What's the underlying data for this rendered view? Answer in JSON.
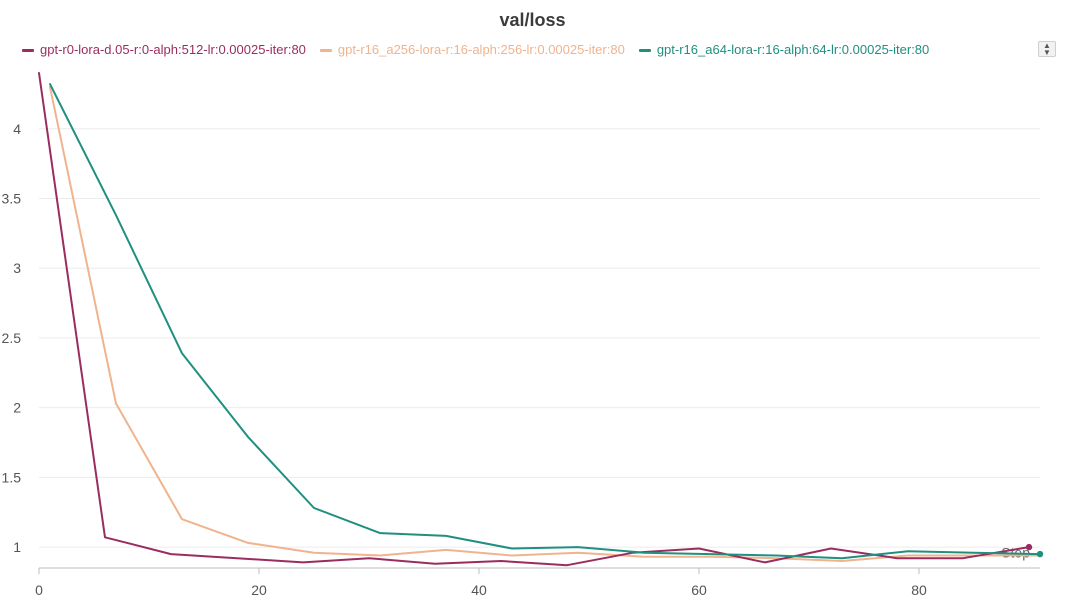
{
  "chart_data": {
    "type": "line",
    "title": "val/loss",
    "xlabel": "Step",
    "ylabel": "",
    "xlim": [
      0,
      91
    ],
    "ylim": [
      0.85,
      4.45
    ],
    "x_ticks": [
      0,
      20,
      40,
      60,
      80
    ],
    "y_ticks": [
      1,
      1.5,
      2,
      2.5,
      3,
      3.5,
      4
    ],
    "grid": "horizontal",
    "legend_position": "top-left",
    "series": [
      {
        "name": "gpt-r0-lora-d.05-r:0-alph:512-lr:0.00025-iter:80",
        "color": "#9b2c5f",
        "end_marker": true,
        "x": [
          0,
          6,
          12,
          18,
          24,
          30,
          36,
          42,
          48,
          54,
          60,
          66,
          72,
          78,
          84,
          90
        ],
        "y": [
          4.4,
          1.07,
          0.95,
          0.92,
          0.89,
          0.92,
          0.88,
          0.9,
          0.87,
          0.96,
          0.99,
          0.89,
          0.99,
          0.92,
          0.92,
          1.0
        ]
      },
      {
        "name": "gpt-r16_a256-lora-r:16-alph:256-lr:0.00025-iter:80",
        "color": "#f0b38e",
        "end_marker": false,
        "x": [
          1,
          7,
          13,
          19,
          25,
          31,
          37,
          43,
          49,
          55,
          61,
          67,
          73,
          79,
          85,
          91
        ],
        "y": [
          4.3,
          2.03,
          1.2,
          1.03,
          0.96,
          0.94,
          0.98,
          0.94,
          0.96,
          0.93,
          0.93,
          0.92,
          0.9,
          0.94,
          0.94,
          0.94
        ]
      },
      {
        "name": "gpt-r16_a64-lora-r:16-alph:64-lr:0.00025-iter:80",
        "color": "#1f8f80",
        "end_marker": true,
        "x": [
          1,
          7,
          13,
          19,
          25,
          31,
          37,
          43,
          49,
          55,
          61,
          67,
          73,
          79,
          85,
          91
        ],
        "y": [
          4.32,
          3.38,
          2.39,
          1.79,
          1.28,
          1.1,
          1.08,
          0.99,
          1.0,
          0.96,
          0.95,
          0.94,
          0.92,
          0.97,
          0.96,
          0.95
        ]
      }
    ]
  }
}
